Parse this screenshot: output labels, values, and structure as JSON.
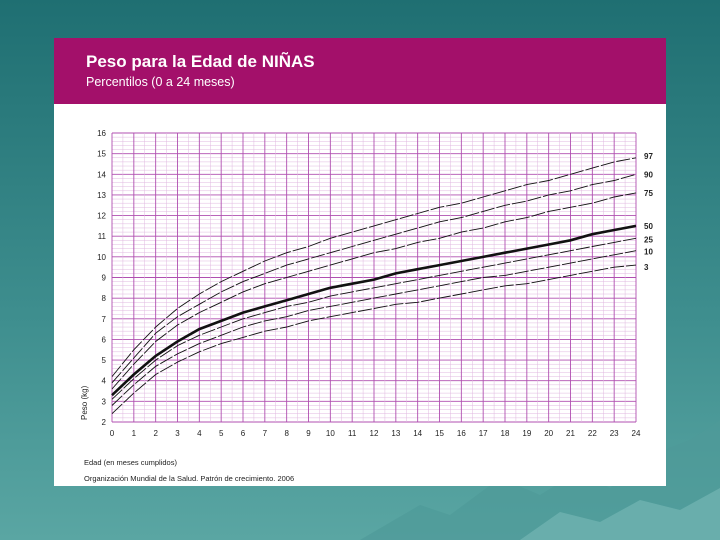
{
  "header": {
    "title": "Peso para la Edad de NIÑAS",
    "subtitle": "Percentilos (0 a 24 meses)"
  },
  "footer": {
    "source": "Organización Mundial de la Salud. Patrón de crecimiento. 2006"
  },
  "colors": {
    "banner": "#a3106a",
    "grid_major": "#b04fb0",
    "grid_minor": "#e0b8e0",
    "curve": "#111111"
  },
  "chart_data": {
    "type": "line",
    "xlabel": "Edad (en meses cumplidos)",
    "ylabel": "Peso (kg)",
    "xlim": [
      0,
      24
    ],
    "ylim": [
      2,
      16
    ],
    "x_ticks": [
      "0",
      "1",
      "2",
      "3",
      "4",
      "5",
      "6",
      "7",
      "8",
      "9",
      "10",
      "11",
      "12",
      "13",
      "14",
      "15",
      "16",
      "17",
      "18",
      "19",
      "20",
      "21",
      "22",
      "23",
      "24"
    ],
    "y_ticks": [
      "2",
      "3",
      "4",
      "5",
      "6",
      "7",
      "8",
      "9",
      "10",
      "11",
      "12",
      "13",
      "14",
      "15",
      "16"
    ],
    "grid": true,
    "x": [
      0,
      1,
      2,
      3,
      4,
      5,
      6,
      7,
      8,
      9,
      10,
      11,
      12,
      13,
      14,
      15,
      16,
      17,
      18,
      19,
      20,
      21,
      22,
      23,
      24
    ],
    "series": [
      {
        "name": "97",
        "values": [
          4.2,
          5.5,
          6.6,
          7.5,
          8.2,
          8.8,
          9.3,
          9.8,
          10.2,
          10.5,
          10.9,
          11.2,
          11.5,
          11.8,
          12.1,
          12.4,
          12.6,
          12.9,
          13.2,
          13.5,
          13.7,
          14.0,
          14.3,
          14.6,
          14.8
        ]
      },
      {
        "name": "90",
        "values": [
          3.9,
          5.1,
          6.3,
          7.1,
          7.7,
          8.3,
          8.8,
          9.2,
          9.6,
          9.9,
          10.2,
          10.5,
          10.8,
          11.1,
          11.4,
          11.7,
          11.9,
          12.2,
          12.5,
          12.7,
          13.0,
          13.2,
          13.5,
          13.7,
          14.0
        ]
      },
      {
        "name": "75",
        "values": [
          3.6,
          4.8,
          5.9,
          6.7,
          7.3,
          7.8,
          8.3,
          8.7,
          9.0,
          9.3,
          9.6,
          9.9,
          10.2,
          10.4,
          10.7,
          10.9,
          11.2,
          11.4,
          11.7,
          11.9,
          12.2,
          12.4,
          12.6,
          12.9,
          13.1
        ]
      },
      {
        "name": "50",
        "values": [
          3.3,
          4.3,
          5.2,
          5.9,
          6.5,
          6.9,
          7.3,
          7.6,
          7.9,
          8.2,
          8.5,
          8.7,
          8.9,
          9.2,
          9.4,
          9.6,
          9.8,
          10.0,
          10.2,
          10.4,
          10.6,
          10.8,
          11.1,
          11.3,
          11.5
        ]
      },
      {
        "name": "25",
        "values": [
          3.1,
          4.1,
          5.0,
          5.7,
          6.2,
          6.6,
          7.0,
          7.3,
          7.6,
          7.8,
          8.1,
          8.3,
          8.5,
          8.7,
          8.9,
          9.1,
          9.3,
          9.5,
          9.7,
          9.9,
          10.1,
          10.3,
          10.5,
          10.7,
          10.9
        ]
      },
      {
        "name": "10",
        "values": [
          2.8,
          3.8,
          4.7,
          5.3,
          5.8,
          6.2,
          6.6,
          6.9,
          7.1,
          7.4,
          7.6,
          7.8,
          8.0,
          8.2,
          8.4,
          8.6,
          8.8,
          9.0,
          9.1,
          9.3,
          9.5,
          9.7,
          9.9,
          10.1,
          10.3
        ]
      },
      {
        "name": "3",
        "values": [
          2.4,
          3.4,
          4.3,
          4.9,
          5.4,
          5.8,
          6.1,
          6.4,
          6.6,
          6.9,
          7.1,
          7.3,
          7.5,
          7.7,
          7.8,
          8.0,
          8.2,
          8.4,
          8.6,
          8.7,
          8.9,
          9.1,
          9.3,
          9.5,
          9.6
        ]
      }
    ],
    "bold_series": "50"
  }
}
